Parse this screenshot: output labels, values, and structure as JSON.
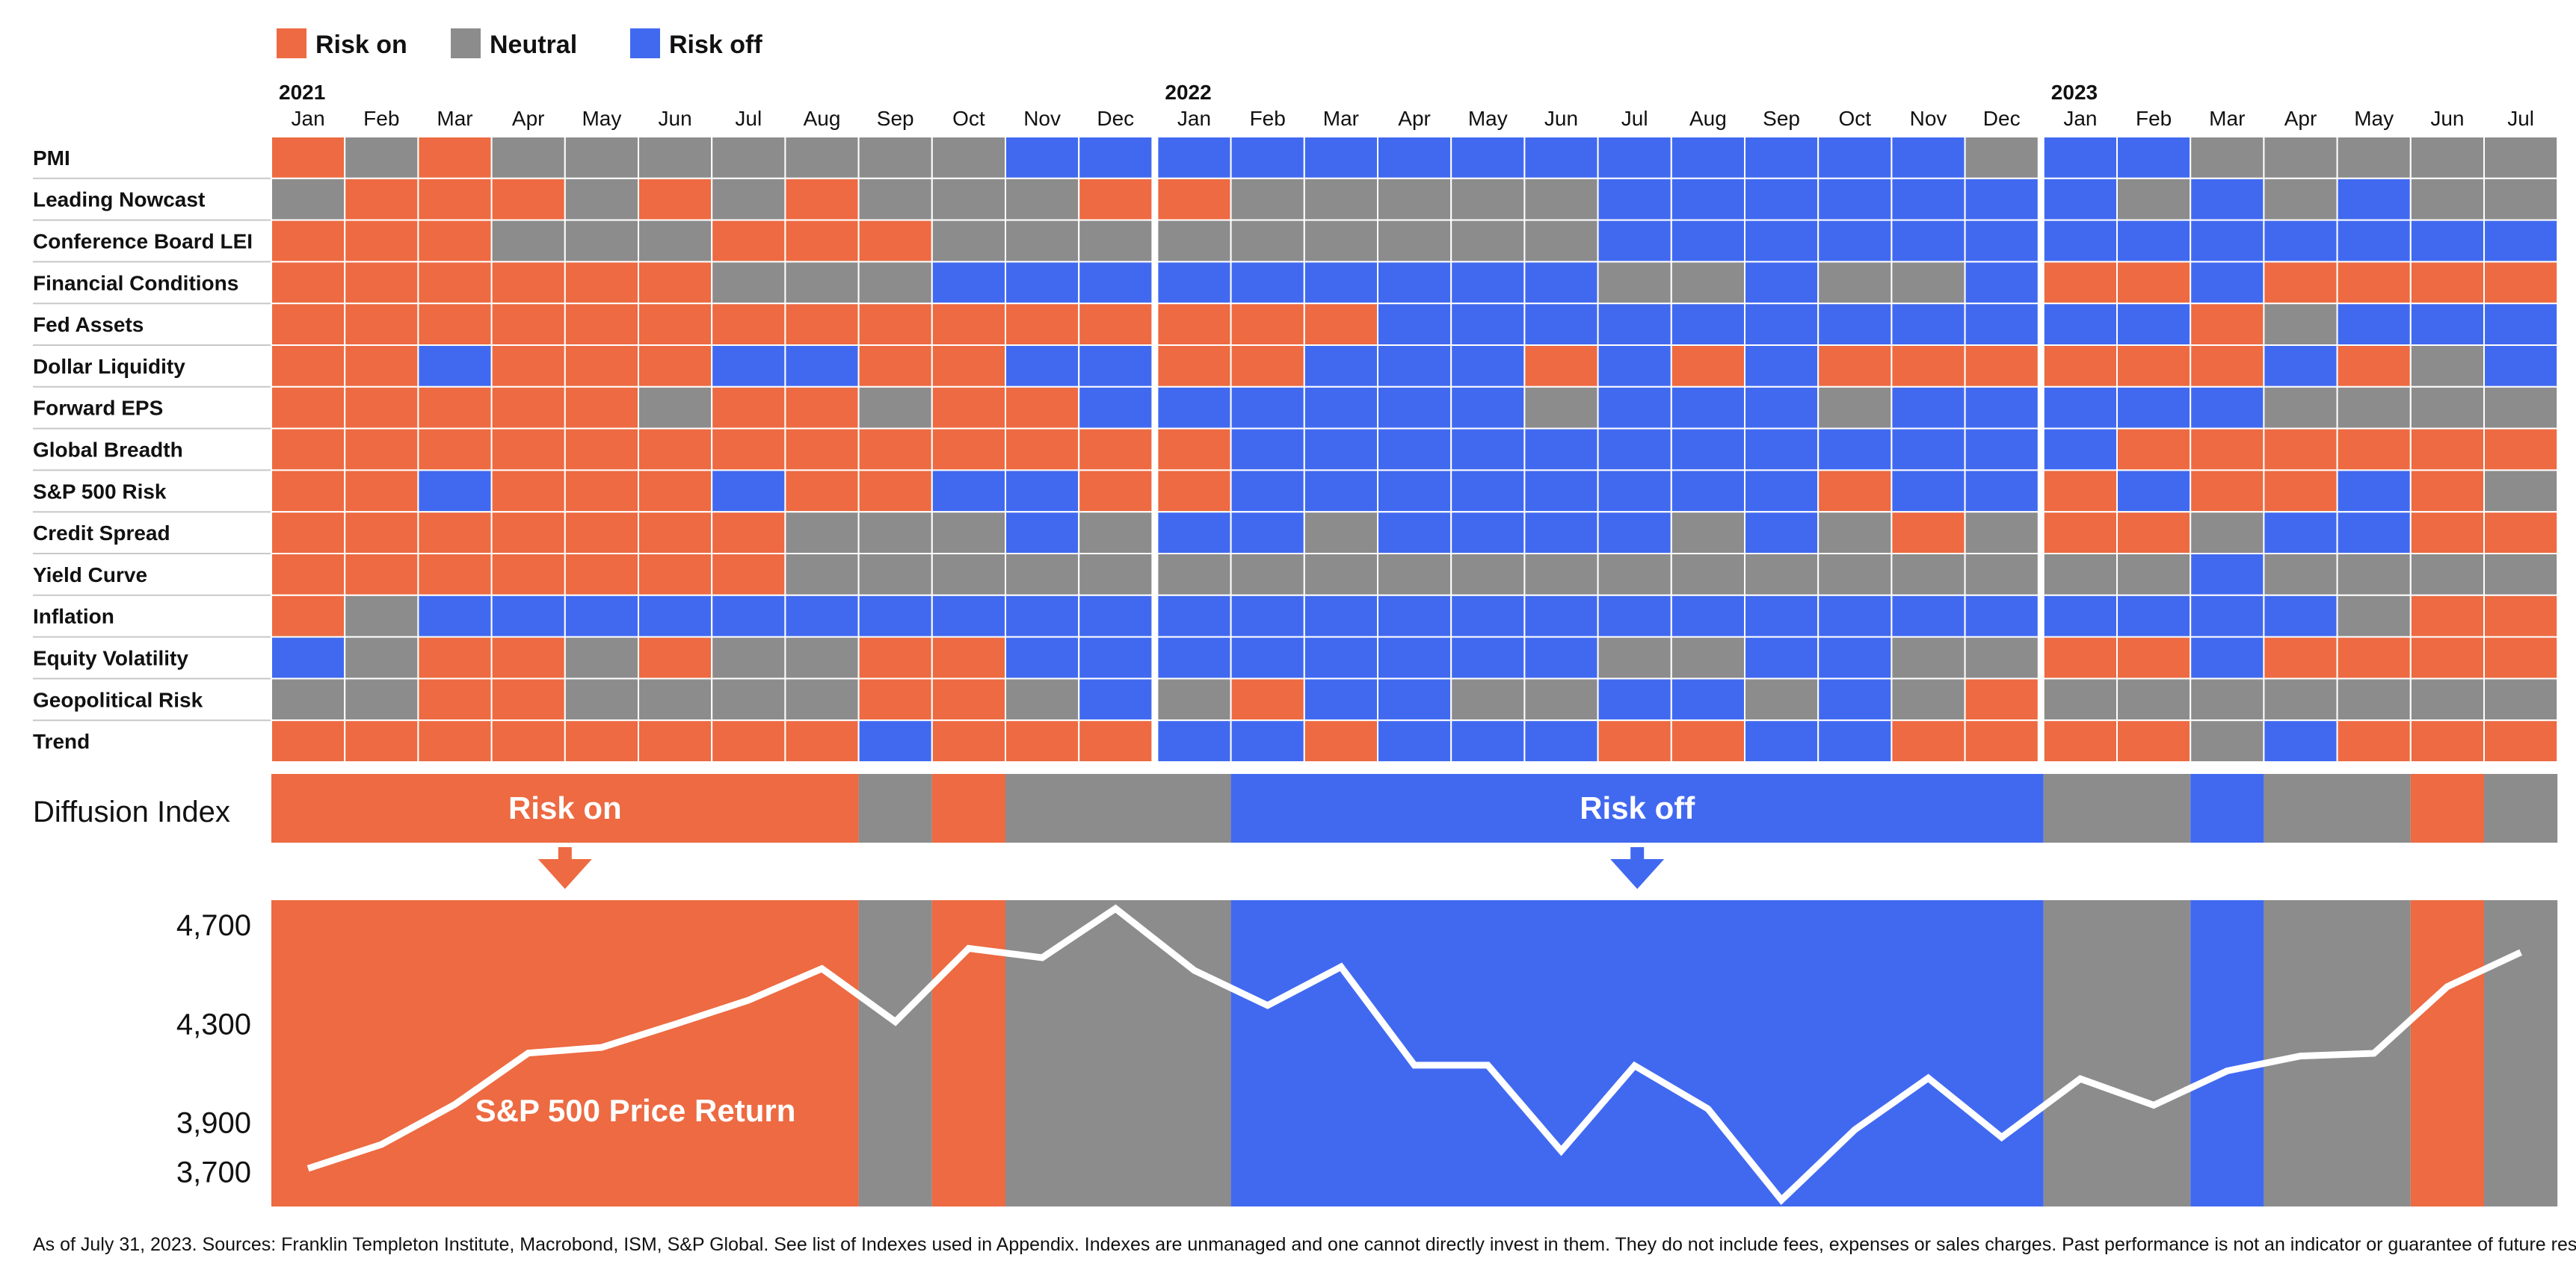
{
  "legend": [
    {
      "key": "on",
      "label": "Risk on",
      "color": "#ED6A42"
    },
    {
      "key": "neutral",
      "label": "Neutral",
      "color": "#8C8C8C"
    },
    {
      "key": "off",
      "label": "Risk off",
      "color": "#4169F0"
    }
  ],
  "colors": {
    "on": "#ED6A42",
    "neutral": "#8C8C8C",
    "off": "#4169F0",
    "line": "#FFFFFF"
  },
  "years": [
    {
      "label": "2021",
      "start_index": 0
    },
    {
      "label": "2022",
      "start_index": 12
    },
    {
      "label": "2023",
      "start_index": 24
    }
  ],
  "months": [
    "Jan",
    "Feb",
    "Mar",
    "Apr",
    "May",
    "Jun",
    "Jul",
    "Aug",
    "Sep",
    "Oct",
    "Nov",
    "Dec",
    "Jan",
    "Feb",
    "Mar",
    "Apr",
    "May",
    "Jun",
    "Jul",
    "Aug",
    "Sep",
    "Oct",
    "Nov",
    "Dec",
    "Jan",
    "Feb",
    "Mar",
    "Apr",
    "May",
    "Jun",
    "Jul"
  ],
  "chart_data": [
    {
      "type": "heatmap",
      "title": "",
      "legend_position": "top-left",
      "category_values": {
        "O": "Risk on",
        "N": "Neutral",
        "F": "Risk off"
      },
      "rows": [
        {
          "name": "PMI",
          "values": "ONONNNNNNNFFFFFFFFFFFFFNFFNNNNN"
        },
        {
          "name": "Leading Nowcast",
          "values": "NOOONONONNNOONNNNNFFFFFFFNFNFNN"
        },
        {
          "name": "Conference Board LEI",
          "values": "OOONNNOOONNNNNNNNNFFFFFFFFFFFFF"
        },
        {
          "name": "Financial Conditions",
          "values": "OOOOOONNNFFFFFFFFFNNFNNFOOFOOOO"
        },
        {
          "name": "Fed Assets",
          "values": "OOOOOOOOOOOOOOOFFFFFFFFFFFONFFF"
        },
        {
          "name": "Dollar Liquidity",
          "values": "OOFOOOFFOOFFOOFFFOFOFOOOOOOFONF"
        },
        {
          "name": "Forward EPS",
          "values": "OOOOONOONOOFFFFFFNFFFNFFFFFNNNN"
        },
        {
          "name": "Global Breadth",
          "values": "OOOOOOOOOOOOOFFFFFFFFFFFFOOOOOO"
        },
        {
          "name": "S&P 500 Risk",
          "values": "OOFOOOFOOFFOOFFFFFFFFOFFOFOOFON"
        },
        {
          "name": "Credit Spread",
          "values": "OOOOOOONNNFNFFNFFFFNFNONOONFFOO"
        },
        {
          "name": "Yield Curve",
          "values": "OOOOOOONNNNNNNNNNNNNNNNNNNFNNNN"
        },
        {
          "name": "Inflation",
          "values": "ONFFFFFFFFFFFFFFFFFFFFFFFFFFNOO"
        },
        {
          "name": "Equity Volatility",
          "values": "FNOONONNOOFFFFFFFFNNFFNNOOFOOOO"
        },
        {
          "name": "Geopolitical Risk",
          "values": "NNOONNNNOONFNOFFNNFFNFNONNNNNNN"
        },
        {
          "name": "Trend",
          "values": "OOOOOOOOFOOOFFOFFFOOFFOOOONFOOO"
        }
      ]
    },
    {
      "type": "area",
      "title": "Diffusion Index",
      "unit": "month",
      "segments": [
        {
          "state": "on",
          "months": 8
        },
        {
          "state": "neutral",
          "months": 1
        },
        {
          "state": "on",
          "months": 1
        },
        {
          "state": "neutral",
          "months": 3
        },
        {
          "state": "off",
          "months": 11
        },
        {
          "state": "neutral",
          "months": 2
        },
        {
          "state": "off",
          "months": 1
        },
        {
          "state": "neutral",
          "months": 2
        },
        {
          "state": "on",
          "months": 1
        },
        {
          "state": "neutral",
          "months": 1
        }
      ],
      "annotations": [
        {
          "text": "Risk on",
          "segment_index": 0
        },
        {
          "text": "Risk off",
          "segment_index": 4
        }
      ]
    },
    {
      "type": "line",
      "series": [
        {
          "name": "S&P 500 Price Return",
          "values": [
            3714,
            3811,
            3973,
            4181,
            4204,
            4298,
            4395,
            4523,
            4308,
            4605,
            4567,
            4766,
            4516,
            4374,
            4530,
            4132,
            4132,
            3785,
            4130,
            3955,
            3586,
            3871,
            4080,
            3840,
            4077,
            3970,
            4109,
            4169,
            4180,
            4450,
            4589
          ]
        }
      ],
      "y_ticks": [
        "3,700",
        "3,900",
        "4,300",
        "4,700"
      ],
      "y_tick_values": [
        3700,
        3900,
        4300,
        4700
      ],
      "ylim": [
        3560,
        4800
      ],
      "background": "diffusion-index"
    }
  ],
  "footnote": "As of July 31, 2023. Sources: Franklin Templeton Institute, Macrobond, ISM, S&P Global. See list of Indexes used in Appendix. Indexes are unmanaged and one cannot directly invest in them. They do not include fees, expenses or sales charges. Past performance is not an indicator or guarantee of future results."
}
